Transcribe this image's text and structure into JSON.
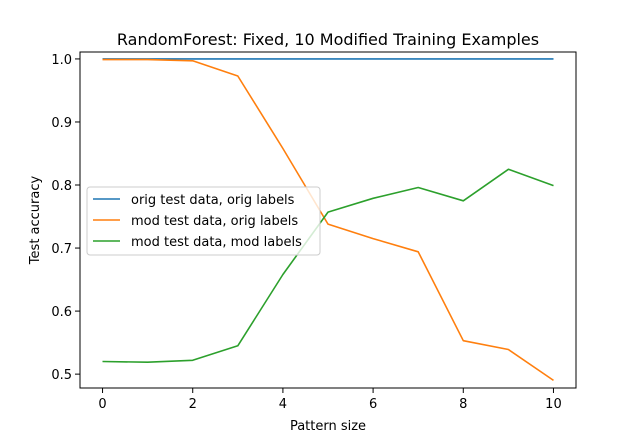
{
  "chart_data": {
    "type": "line",
    "title": "RandomForest: Fixed, 10 Modified Training Examples",
    "xlabel": "Pattern size",
    "ylabel": "Test accuracy",
    "x": [
      0,
      1,
      2,
      3,
      4,
      5,
      6,
      7,
      8,
      9,
      10
    ],
    "xlim": [
      -0.5,
      10.5
    ],
    "ylim": [
      0.478,
      1.011
    ],
    "xticks": [
      0,
      2,
      4,
      6,
      8,
      10
    ],
    "xtick_labels": [
      "0",
      "2",
      "4",
      "6",
      "8",
      "10"
    ],
    "yticks": [
      0.5,
      0.6,
      0.7,
      0.8,
      0.9,
      1.0
    ],
    "ytick_labels": [
      "0.5",
      "0.6",
      "0.7",
      "0.8",
      "0.9",
      "1.0"
    ],
    "grid": false,
    "legend_position": "center-left",
    "series": [
      {
        "name": "orig test data, orig labels",
        "color": "#1f77b4",
        "values": [
          1.0,
          1.0,
          1.0,
          1.0,
          1.0,
          1.0,
          1.0,
          1.0,
          1.0,
          1.0,
          1.0
        ]
      },
      {
        "name": "mod test data, orig labels",
        "color": "#ff7f0e",
        "values": [
          0.999,
          0.999,
          0.997,
          0.973,
          0.858,
          0.738,
          0.715,
          0.694,
          0.553,
          0.539,
          0.49
        ]
      },
      {
        "name": "mod test data, mod labels",
        "color": "#2ca02c",
        "values": [
          0.52,
          0.519,
          0.522,
          0.545,
          0.658,
          0.757,
          0.779,
          0.796,
          0.775,
          0.825,
          0.799
        ]
      }
    ]
  }
}
